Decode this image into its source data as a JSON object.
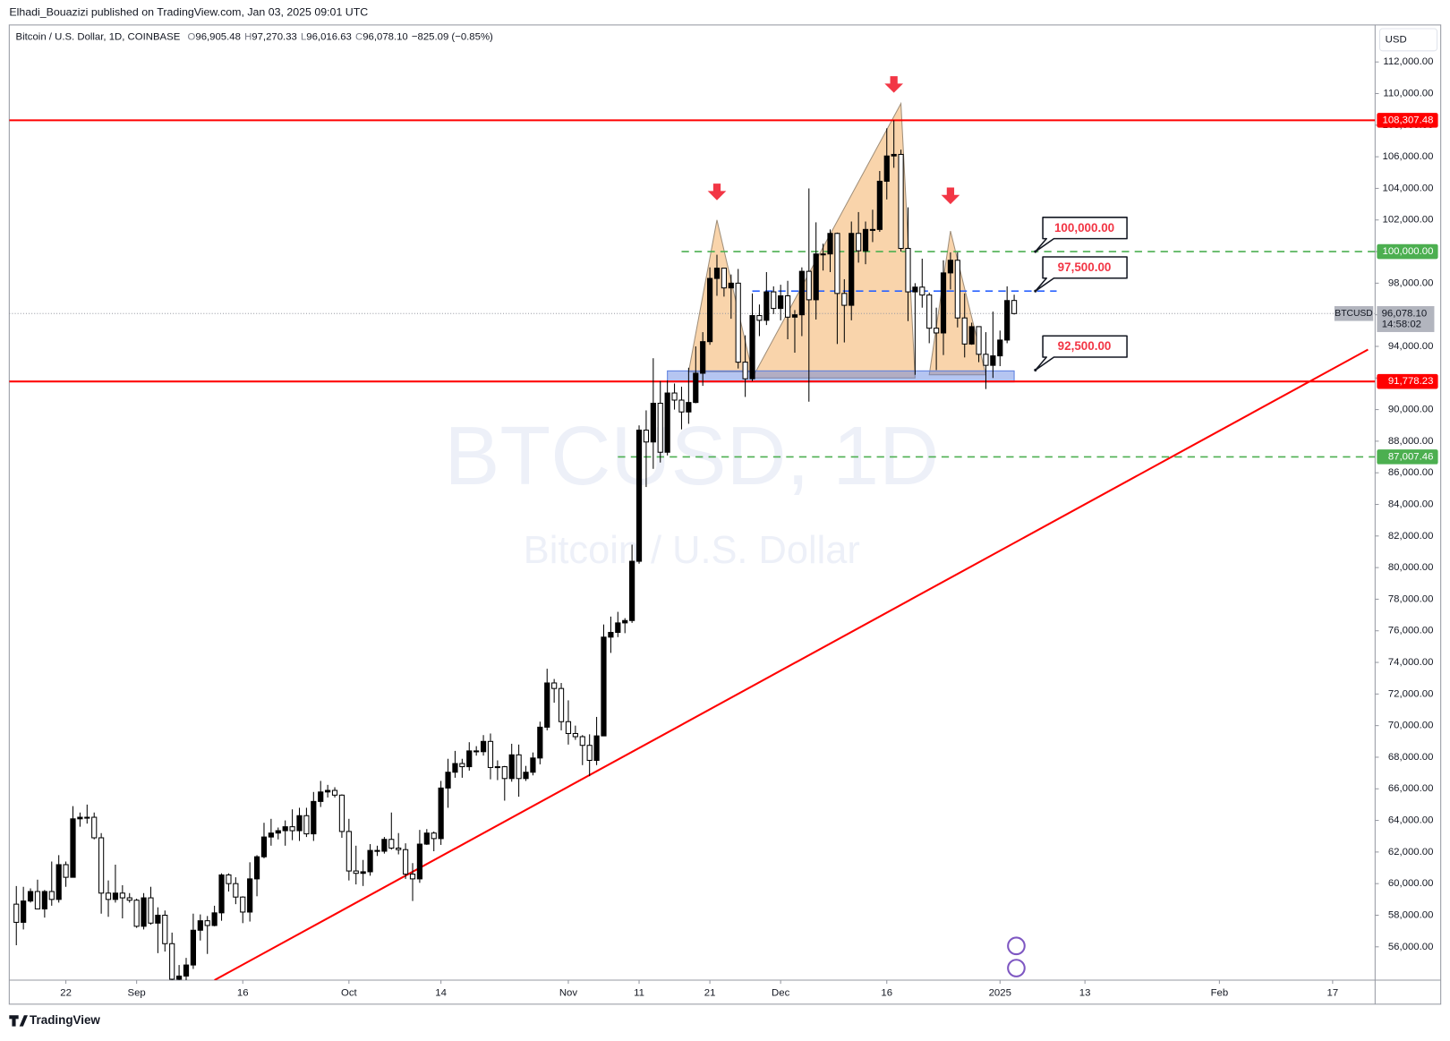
{
  "chart_data": {
    "type": "candlestick",
    "header": "Elhadi_Bouazizi published on TradingView.com, Jan 03, 2025 09:01 UTC",
    "legend": {
      "symbol": "Bitcoin / U.S. Dollar, 1D, COINBASE",
      "ohlc": [
        {
          "key": "O",
          "value": "96,905.48"
        },
        {
          "key": "H",
          "value": "97,270.33"
        },
        {
          "key": "L",
          "value": "96,016.63"
        },
        {
          "key": "C",
          "value": "96,078.10"
        }
      ],
      "change": "−825.09 (−0.85%)"
    },
    "watermark": {
      "title": "BTCUSD, 1D",
      "subtitle": "Bitcoin / U.S. Dollar"
    },
    "currency": "USD",
    "brand": "TradingView",
    "up_color": "#000000",
    "down_color": "#ffffff",
    "xlim": [
      "2024-08-14",
      "2025-02-23"
    ],
    "ylim": [
      53893,
      114341
    ],
    "xticks": [
      {
        "value": "2024-08-22",
        "label": "22"
      },
      {
        "value": "2024-09-01",
        "label": "Sep"
      },
      {
        "value": "2024-09-16",
        "label": "16"
      },
      {
        "value": "2024-10-01",
        "label": "Oct"
      },
      {
        "value": "2024-10-14",
        "label": "14"
      },
      {
        "value": "2024-11-01",
        "label": "Nov"
      },
      {
        "value": "2024-11-11",
        "label": "11"
      },
      {
        "value": "2024-11-21",
        "label": "21"
      },
      {
        "value": "2024-12-01",
        "label": "Dec"
      },
      {
        "value": "2024-12-16",
        "label": "16"
      },
      {
        "value": "2025-01-01",
        "label": "2025"
      },
      {
        "value": "2025-01-13",
        "label": "13"
      },
      {
        "value": "2025-02-01",
        "label": "Feb"
      },
      {
        "value": "2025-02-17",
        "label": "17"
      }
    ],
    "yticks": [
      {
        "value": 56000,
        "label": "56,000.00"
      },
      {
        "value": 58000,
        "label": "58,000.00"
      },
      {
        "value": 60000,
        "label": "60,000.00"
      },
      {
        "value": 62000,
        "label": "62,000.00"
      },
      {
        "value": 64000,
        "label": "64,000.00"
      },
      {
        "value": 66000,
        "label": "66,000.00"
      },
      {
        "value": 68000,
        "label": "68,000.00"
      },
      {
        "value": 70000,
        "label": "70,000.00"
      },
      {
        "value": 72000,
        "label": "72,000.00"
      },
      {
        "value": 74000,
        "label": "74,000.00"
      },
      {
        "value": 76000,
        "label": "76,000.00"
      },
      {
        "value": 78000,
        "label": "78,000.00"
      },
      {
        "value": 80000,
        "label": "80,000.00"
      },
      {
        "value": 82000,
        "label": "82,000.00"
      },
      {
        "value": 84000,
        "label": "84,000.00"
      },
      {
        "value": 86000,
        "label": "86,000.00"
      },
      {
        "value": 88000,
        "label": "88,000.00"
      },
      {
        "value": 90000,
        "label": "90,000.00"
      },
      {
        "value": 92000,
        "label": "92,000.00"
      },
      {
        "value": 94000,
        "label": "94,000.00"
      },
      {
        "value": 96000,
        "label": "96,000.00"
      },
      {
        "value": 98000,
        "label": "98,000.00"
      },
      {
        "value": 100000,
        "label": "100,000.00"
      },
      {
        "value": 102000,
        "label": "102,000.00"
      },
      {
        "value": 104000,
        "label": "104,000.00"
      },
      {
        "value": 106000,
        "label": "106,000.00"
      },
      {
        "value": 108000,
        "label": "108,000.00"
      },
      {
        "value": 110000,
        "label": "110,000.00"
      },
      {
        "value": 112000,
        "label": "112,000.00"
      }
    ],
    "candles": {
      "x": [
        "2024-08-15",
        "2024-08-16",
        "2024-08-17",
        "2024-08-18",
        "2024-08-19",
        "2024-08-20",
        "2024-08-21",
        "2024-08-22",
        "2024-08-23",
        "2024-08-24",
        "2024-08-25",
        "2024-08-26",
        "2024-08-27",
        "2024-08-28",
        "2024-08-29",
        "2024-08-30",
        "2024-08-31",
        "2024-09-01",
        "2024-09-02",
        "2024-09-03",
        "2024-09-04",
        "2024-09-05",
        "2024-09-06",
        "2024-09-07",
        "2024-09-08",
        "2024-09-09",
        "2024-09-10",
        "2024-09-11",
        "2024-09-12",
        "2024-09-13",
        "2024-09-14",
        "2024-09-15",
        "2024-09-16",
        "2024-09-17",
        "2024-09-18",
        "2024-09-19",
        "2024-09-20",
        "2024-09-21",
        "2024-09-22",
        "2024-09-23",
        "2024-09-24",
        "2024-09-25",
        "2024-09-26",
        "2024-09-27",
        "2024-09-28",
        "2024-09-29",
        "2024-09-30",
        "2024-10-01",
        "2024-10-02",
        "2024-10-03",
        "2024-10-04",
        "2024-10-05",
        "2024-10-06",
        "2024-10-07",
        "2024-10-08",
        "2024-10-09",
        "2024-10-10",
        "2024-10-11",
        "2024-10-12",
        "2024-10-13",
        "2024-10-14",
        "2024-10-15",
        "2024-10-16",
        "2024-10-17",
        "2024-10-18",
        "2024-10-19",
        "2024-10-20",
        "2024-10-21",
        "2024-10-22",
        "2024-10-23",
        "2024-10-24",
        "2024-10-25",
        "2024-10-26",
        "2024-10-27",
        "2024-10-28",
        "2024-10-29",
        "2024-10-30",
        "2024-10-31",
        "2024-11-01",
        "2024-11-02",
        "2024-11-03",
        "2024-11-04",
        "2024-11-05",
        "2024-11-06",
        "2024-11-07",
        "2024-11-08",
        "2024-11-09",
        "2024-11-10",
        "2024-11-11",
        "2024-11-12",
        "2024-11-13",
        "2024-11-14",
        "2024-11-15",
        "2024-11-16",
        "2024-11-17",
        "2024-11-18",
        "2024-11-19",
        "2024-11-20",
        "2024-11-21",
        "2024-11-22",
        "2024-11-23",
        "2024-11-24",
        "2024-11-25",
        "2024-11-26",
        "2024-11-27",
        "2024-11-28",
        "2024-11-29",
        "2024-11-30",
        "2024-12-01",
        "2024-12-02",
        "2024-12-03",
        "2024-12-04",
        "2024-12-05",
        "2024-12-06",
        "2024-12-07",
        "2024-12-08",
        "2024-12-09",
        "2024-12-10",
        "2024-12-11",
        "2024-12-12",
        "2024-12-13",
        "2024-12-14",
        "2024-12-15",
        "2024-12-16",
        "2024-12-17",
        "2024-12-18",
        "2024-12-19",
        "2024-12-20",
        "2024-12-21",
        "2024-12-22",
        "2024-12-23",
        "2024-12-24",
        "2024-12-25",
        "2024-12-26",
        "2024-12-27",
        "2024-12-28",
        "2024-12-29",
        "2024-12-30",
        "2024-12-31",
        "2025-01-01",
        "2025-01-02",
        "2025-01-03"
      ],
      "open": [
        58700,
        57550,
        58900,
        59500,
        58400,
        59500,
        59000,
        61200,
        60400,
        64100,
        64200,
        64200,
        62900,
        59400,
        59000,
        59400,
        59100,
        58950,
        57300,
        59100,
        57500,
        58000,
        56200,
        53950,
        54150,
        54850,
        57050,
        57650,
        57350,
        58150,
        60550,
        60000,
        59150,
        58200,
        60300,
        61700,
        62950,
        63200,
        63350,
        63600,
        63350,
        64300,
        63150,
        65200,
        65800,
        65900,
        65600,
        63300,
        60800,
        60650,
        60750,
        62100,
        62050,
        62800,
        62250,
        62150,
        60600,
        60300,
        62500,
        63200,
        62850,
        66050,
        67050,
        67600,
        67400,
        68400,
        68350,
        69000,
        67350,
        67400,
        66650,
        68150,
        66650,
        67050,
        67950,
        69900,
        72700,
        72350,
        70250,
        69500,
        69300,
        68750,
        67800,
        69350,
        75600,
        75900,
        76500,
        76650,
        80400,
        88700,
        87950,
        90400,
        87300,
        91050,
        90600,
        89850,
        90450,
        92300,
        94300,
        98300,
        98950,
        97700,
        98000,
        93000,
        91950,
        95950,
        95650,
        97450,
        96400,
        97200,
        95850,
        96000,
        98750,
        96950,
        99850,
        99850,
        101150,
        97350,
        96600,
        101150,
        100050,
        101400,
        101400,
        104450,
        106050,
        106150,
        100200,
        97450,
        97750,
        97250,
        95150,
        94850,
        98650,
        99450,
        95800,
        94150,
        95250,
        93500,
        92800,
        93400,
        94400,
        96905.48
      ],
      "high": [
        59850,
        59800,
        59700,
        60250,
        59600,
        61400,
        61800,
        61400,
        64900,
        64500,
        65000,
        64500,
        63200,
        60200,
        61200,
        59900,
        59400,
        59050,
        59400,
        59800,
        58500,
        58300,
        56900,
        54850,
        55300,
        58100,
        58050,
        57950,
        58600,
        60650,
        60650,
        60400,
        59200,
        61350,
        61800,
        63850,
        64100,
        63550,
        64000,
        64700,
        64800,
        64800,
        65800,
        66500,
        66250,
        66100,
        65650,
        64100,
        62400,
        61500,
        62500,
        62400,
        62950,
        64500,
        63200,
        62550,
        61300,
        63400,
        63450,
        63300,
        66500,
        67900,
        68400,
        67900,
        68950,
        68700,
        69400,
        69500,
        67800,
        67450,
        68850,
        68800,
        67450,
        68300,
        70250,
        73600,
        72950,
        72700,
        71600,
        70000,
        69400,
        69450,
        70550,
        76400,
        76900,
        77200,
        76800,
        81450,
        89000,
        89950,
        93250,
        91800,
        91850,
        91650,
        91450,
        92650,
        94000,
        94900,
        99000,
        99800,
        98950,
        98550,
        98900,
        94700,
        97350,
        96650,
        98700,
        97800,
        97900,
        98150,
        96300,
        99000,
        104000,
        101850,
        100500,
        101400,
        101200,
        98250,
        101900,
        102500,
        101900,
        102650,
        105100,
        107800,
        108300,
        106450,
        102800,
        98000,
        99550,
        97400,
        96450,
        99450,
        99950,
        99950,
        97350,
        95500,
        95250,
        94900,
        96200,
        95000,
        97800,
        97270.33
      ],
      "low": [
        56100,
        57100,
        58800,
        58400,
        57850,
        58600,
        58800,
        59800,
        60400,
        63600,
        63800,
        62800,
        58100,
        57900,
        58800,
        57800,
        58800,
        57200,
        57100,
        57400,
        55600,
        55700,
        52550,
        53750,
        53650,
        54600,
        56400,
        55550,
        57300,
        57650,
        59500,
        58700,
        57500,
        57600,
        59200,
        61600,
        62400,
        62800,
        62400,
        62750,
        62700,
        62950,
        62700,
        64850,
        65450,
        65450,
        62900,
        60200,
        59950,
        59850,
        60500,
        61750,
        61900,
        62150,
        61850,
        60300,
        58900,
        60050,
        62450,
        62050,
        62450,
        64800,
        66700,
        66700,
        67150,
        68100,
        68100,
        66600,
        66550,
        65250,
        66450,
        65500,
        66500,
        66850,
        67550,
        69700,
        71450,
        69700,
        68800,
        69100,
        67500,
        66800,
        67500,
        69350,
        74600,
        75600,
        75850,
        76500,
        80250,
        85100,
        86250,
        86650,
        87100,
        90000,
        88750,
        89100,
        90400,
        91500,
        94100,
        97200,
        97150,
        95750,
        92600,
        90800,
        91800,
        94650,
        95350,
        96050,
        95650,
        94450,
        93600,
        94650,
        90500,
        95700,
        98800,
        98700,
        94150,
        94250,
        95650,
        99300,
        99200,
        100600,
        101250,
        103300,
        105300,
        100000,
        95600,
        92200,
        96450,
        94200,
        92500,
        93450,
        97600,
        95200,
        93300,
        94100,
        93000,
        91300,
        92000,
        92750,
        94200,
        96016.63
      ],
      "close": [
        57550,
        58900,
        59500,
        58400,
        59500,
        59000,
        61200,
        60400,
        64100,
        64200,
        64200,
        62900,
        59400,
        59000,
        59400,
        59100,
        58950,
        57300,
        59100,
        57500,
        58000,
        56200,
        53950,
        54150,
        54850,
        57050,
        57650,
        57350,
        58150,
        60550,
        60000,
        59150,
        58200,
        60300,
        61700,
        62950,
        63200,
        63350,
        63600,
        63350,
        64300,
        63150,
        65200,
        65800,
        65900,
        65600,
        63300,
        60800,
        60650,
        60750,
        62100,
        62050,
        62800,
        62250,
        62150,
        60600,
        60300,
        62500,
        63200,
        62850,
        66050,
        67050,
        67600,
        67400,
        68400,
        68350,
        69000,
        67350,
        67400,
        66650,
        68150,
        66650,
        67050,
        67950,
        69900,
        72700,
        72350,
        70250,
        69500,
        69300,
        68750,
        67800,
        69350,
        75600,
        75900,
        76500,
        76650,
        80400,
        88700,
        87950,
        90400,
        87300,
        91050,
        90600,
        89850,
        90450,
        92300,
        94300,
        98300,
        98950,
        97700,
        98000,
        93000,
        91950,
        95950,
        95650,
        97450,
        96400,
        97200,
        95850,
        96000,
        98750,
        96950,
        99850,
        99850,
        101150,
        97350,
        96600,
        101150,
        100050,
        101400,
        101400,
        104450,
        106050,
        106150,
        100200,
        97450,
        97750,
        97250,
        95150,
        94850,
        98650,
        99450,
        95800,
        94150,
        95250,
        93500,
        92800,
        93400,
        94400,
        96900,
        96078.1
      ]
    },
    "levels": [
      {
        "value": 108307.48,
        "label": "108,307.48",
        "color": "#ff0000",
        "style": "solid"
      },
      {
        "value": 100000,
        "label": "100,000.00",
        "color": "#4caf50",
        "style": "dashed",
        "from": "2024-11-17"
      },
      {
        "value": 97500,
        "color": "#2962ff",
        "style": "dashed",
        "from": "2024-11-27",
        "to": "2025-01-09"
      },
      {
        "value": 91778.23,
        "label": "91,778.23",
        "color": "#ff0000",
        "style": "solid"
      },
      {
        "value": 87007.46,
        "label": "87,007.46",
        "color": "#4caf50",
        "style": "dashed",
        "from": "2024-11-08"
      }
    ],
    "last_price": {
      "symbol": "BTCUSD",
      "value": 96078.1,
      "label": "96,078.10",
      "countdown": "14:58:02"
    },
    "trendline": {
      "x": [
        "2024-09-12",
        "2025-02-22"
      ],
      "y": [
        53893,
        93800
      ],
      "color": "#ff0000"
    },
    "zone": {
      "x": [
        "2024-11-15",
        "2025-01-03"
      ],
      "y": [
        91750,
        92450
      ],
      "color": "#5b7fe0"
    },
    "patterns": [
      {
        "x": [
          "2024-11-18",
          "2024-11-22",
          "2024-11-27"
        ],
        "y": [
          92400,
          102000,
          92400
        ]
      },
      {
        "x": [
          "2024-11-27",
          "2024-12-18",
          "2024-12-20"
        ],
        "y": [
          92000,
          109370,
          92000
        ]
      },
      {
        "x": [
          "2024-12-22",
          "2024-12-25",
          "2024-12-30"
        ],
        "y": [
          92200,
          101300,
          92200
        ]
      }
    ],
    "arrows": {
      "x": [
        "2024-11-22",
        "2024-12-17",
        "2024-12-25"
      ],
      "y": [
        103600,
        110400,
        103350
      ],
      "color": "#f23645"
    },
    "callouts": {
      "x": "2025-01-06",
      "items": [
        {
          "value": 100000,
          "label": "100,000.00"
        },
        {
          "value": 97500,
          "label": "97,500.00"
        },
        {
          "value": 92500,
          "label": "92,500.00"
        }
      ]
    }
  }
}
